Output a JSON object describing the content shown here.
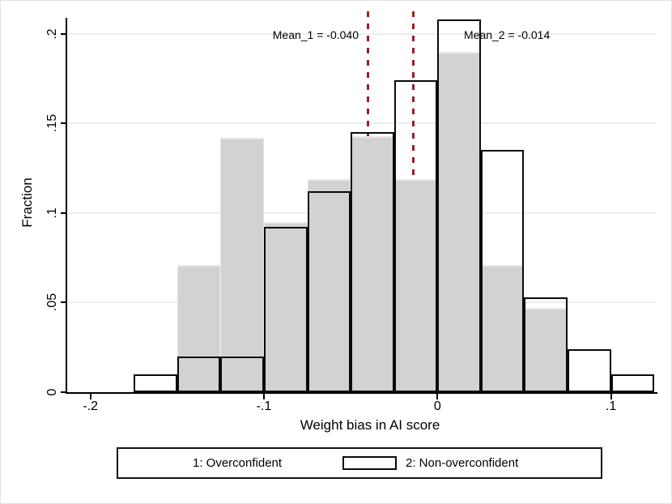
{
  "chart_data": {
    "type": "bar",
    "subtype": "overlaid-histogram",
    "title": "",
    "xlabel": "Weight bias in AI score",
    "ylabel": "Fraction",
    "bin_width": 0.025,
    "bin_start": [
      -0.175,
      -0.15,
      -0.125,
      -0.1,
      -0.075,
      -0.05,
      -0.025,
      0.0,
      0.025,
      0.05,
      0.075,
      0.1
    ],
    "series": [
      {
        "name": "1: Overconfident",
        "style": "filled",
        "fill_color": "#d2d2d2",
        "values": [
          0,
          0.071,
          0.142,
          0.095,
          0.119,
          0.143,
          0.119,
          0.19,
          0.071,
          0.047,
          0,
          0
        ]
      },
      {
        "name": "2: Non-overconfident",
        "style": "outline",
        "outline_color": "#0a0a0a",
        "values": [
          0.01,
          0.02,
          0.02,
          0.092,
          0.112,
          0.145,
          0.174,
          0.208,
          0.135,
          0.053,
          0.024,
          0.01
        ]
      }
    ],
    "mean_lines": [
      {
        "label": "Mean_1 = -0.040",
        "x": -0.04
      },
      {
        "label": "Mean_2 = -0.014",
        "x": -0.014
      }
    ],
    "xticks": [
      -0.2,
      -0.1,
      0,
      0.1
    ],
    "xtick_labels": [
      "-.2",
      "-.1",
      "0",
      ".1"
    ],
    "yticks": [
      0,
      0.05,
      0.1,
      0.15,
      0.2
    ],
    "ytick_labels": [
      "0",
      ".05",
      ".1",
      ".15",
      ".2"
    ],
    "xlim": [
      -0.2135,
      0.1265
    ],
    "ylim": [
      0,
      0.2125
    ],
    "grid": true,
    "legend_position": "bottom"
  },
  "legend": {
    "items": [
      {
        "label": "1: Overconfident",
        "swatch": "gray-fill"
      },
      {
        "label": "2: Non-overconfident",
        "swatch": "white-outline"
      }
    ]
  },
  "colors": {
    "bar_fill": "#d2d2d2",
    "bar_outline": "#0a0a0a",
    "mean_line": "#9a2025",
    "gridline": "#e8eef1",
    "axis": "#000000"
  }
}
